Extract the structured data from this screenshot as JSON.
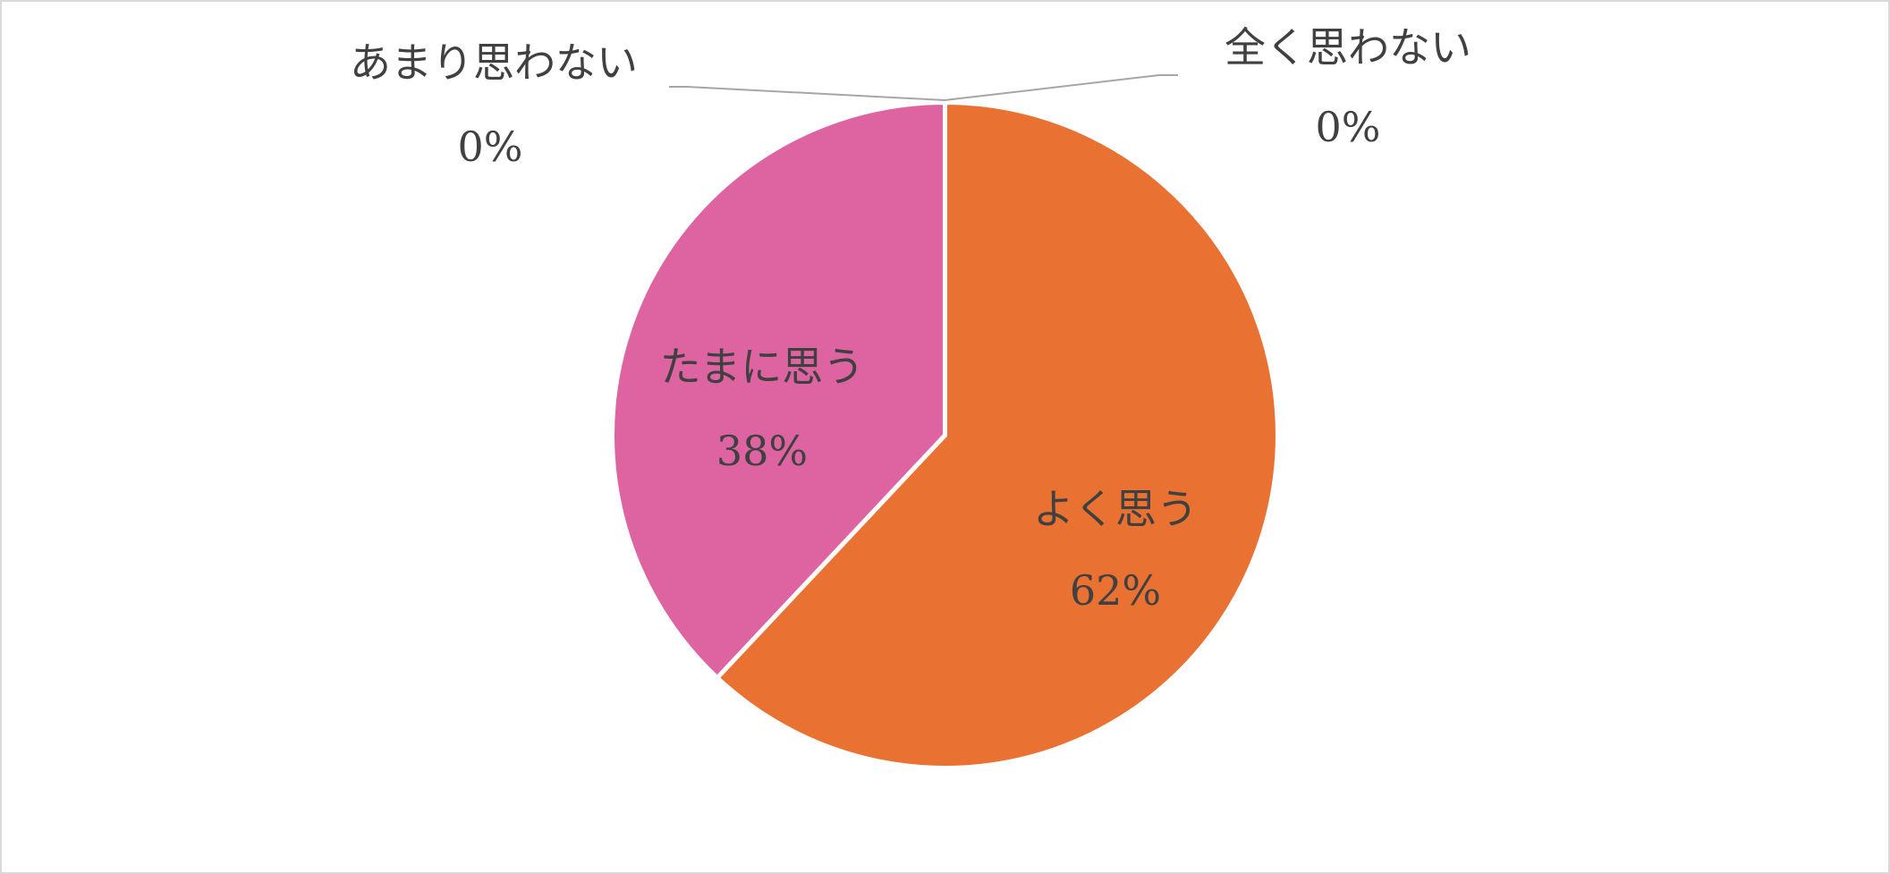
{
  "chart_data": {
    "type": "pie",
    "categories": [
      "よく思う",
      "たまに思う",
      "あまり思わない",
      "全く思わない"
    ],
    "values": [
      62,
      38,
      0,
      0
    ],
    "value_labels": [
      "62%",
      "38%",
      "0%",
      "0%"
    ],
    "colors": [
      "#E97132",
      "#DD64A0"
    ]
  }
}
